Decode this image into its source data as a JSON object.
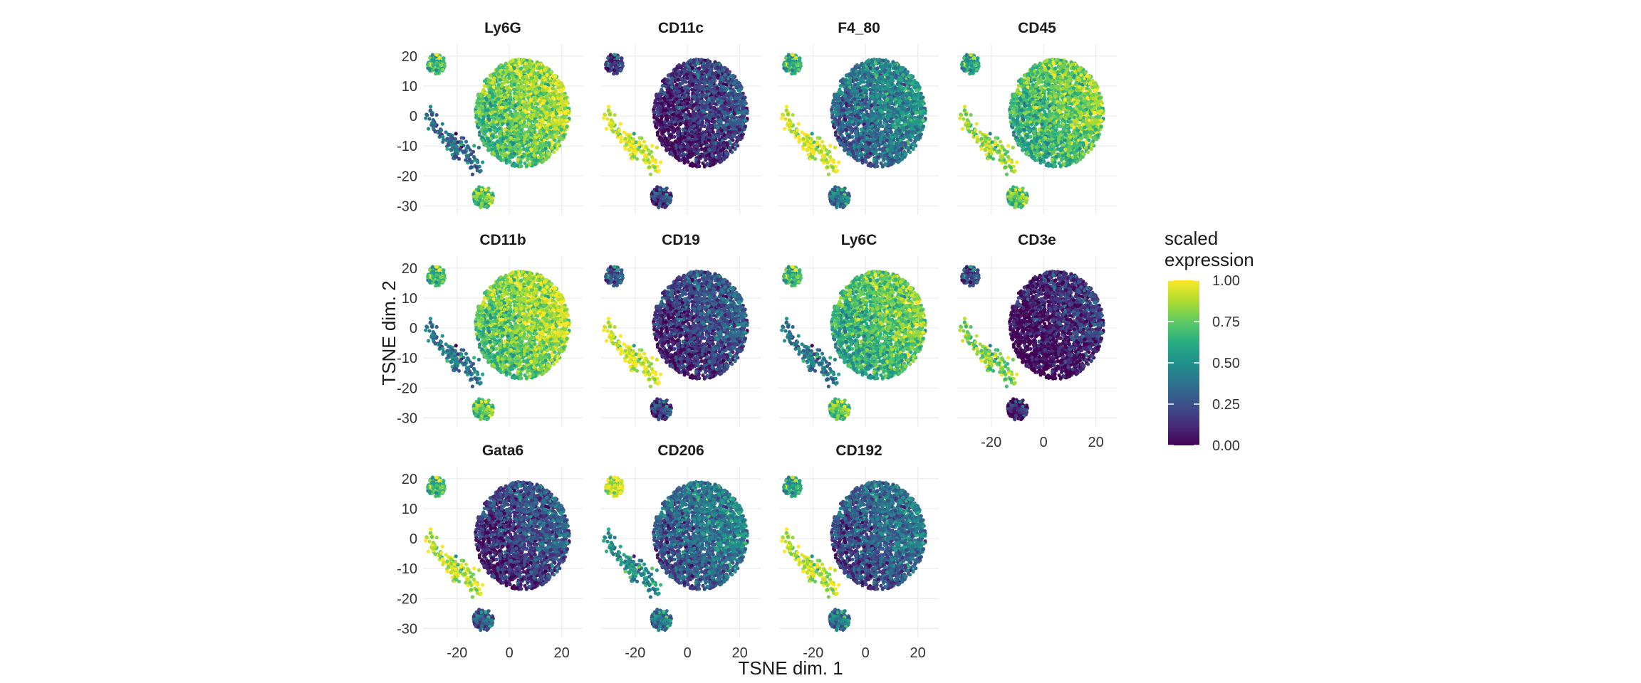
{
  "chart_data": {
    "type": "scatter",
    "subtype": "faceted tSNE scatter, points colored by scaled marker expression (viridis)",
    "xlabel": "TSNE dim. 1",
    "ylabel": "TSNE dim. 2",
    "xlim": [
      -33,
      28
    ],
    "ylim": [
      -33,
      24
    ],
    "x_ticks": [
      -20,
      0,
      20
    ],
    "y_ticks": [
      20,
      10,
      0,
      -10,
      -20,
      -30
    ],
    "x_tick_labels": [
      "-20",
      "0",
      "20"
    ],
    "y_tick_labels": [
      "20",
      "10",
      "0",
      "-10",
      "-20",
      "-30"
    ],
    "grid": true,
    "legend": {
      "title_lines": [
        "scaled",
        "expression"
      ],
      "placement": "right",
      "colormap": "viridis",
      "range": [
        0,
        1
      ],
      "breaks": [
        1.0,
        0.75,
        0.5,
        0.25,
        0.0
      ],
      "labels": [
        "1.00",
        "0.75",
        "0.50",
        "0.25",
        "0.00"
      ]
    },
    "clusters": [
      {
        "id": "main",
        "center": [
          5,
          1
        ],
        "radius": 18
      },
      {
        "id": "upper-left",
        "center": [
          -28,
          17.5
        ],
        "radius": 3.5
      },
      {
        "id": "bottom",
        "center": [
          -10,
          -27
        ],
        "radius": 3.8
      },
      {
        "id": "left-tail",
        "center": [
          -26,
          -6
        ],
        "radius": 4
      }
    ],
    "facets": [
      {
        "title": "Ly6G",
        "expression": {
          "main": 0.78,
          "upper-left": 0.7,
          "bottom": 0.75,
          "left-tail": 0.35
        }
      },
      {
        "title": "CD11c",
        "expression": {
          "main": 0.15,
          "upper-left": 0.2,
          "bottom": 0.2,
          "left-tail": 0.95
        }
      },
      {
        "title": "F4_80",
        "expression": {
          "main": 0.4,
          "upper-left": 0.65,
          "bottom": 0.4,
          "left-tail": 0.95
        }
      },
      {
        "title": "CD45",
        "expression": {
          "main": 0.72,
          "upper-left": 0.6,
          "bottom": 0.75,
          "left-tail": 0.85
        }
      },
      {
        "title": "CD11b",
        "expression": {
          "main": 0.8,
          "upper-left": 0.7,
          "bottom": 0.75,
          "left-tail": 0.4
        }
      },
      {
        "title": "CD19",
        "expression": {
          "main": 0.2,
          "upper-left": 0.3,
          "bottom": 0.2,
          "left-tail": 0.95
        }
      },
      {
        "title": "Ly6C",
        "expression": {
          "main": 0.7,
          "upper-left": 0.7,
          "bottom": 0.75,
          "left-tail": 0.4
        }
      },
      {
        "title": "CD3e",
        "expression": {
          "main": 0.08,
          "upper-left": 0.25,
          "bottom": 0.1,
          "left-tail": 0.8
        }
      },
      {
        "title": "Gata6",
        "expression": {
          "main": 0.2,
          "upper-left": 0.7,
          "bottom": 0.3,
          "left-tail": 0.9
        }
      },
      {
        "title": "CD206",
        "expression": {
          "main": 0.35,
          "upper-left": 0.95,
          "bottom": 0.4,
          "left-tail": 0.5
        }
      },
      {
        "title": "CD192",
        "expression": {
          "main": 0.3,
          "upper-left": 0.6,
          "bottom": 0.4,
          "left-tail": 0.9
        }
      }
    ]
  }
}
